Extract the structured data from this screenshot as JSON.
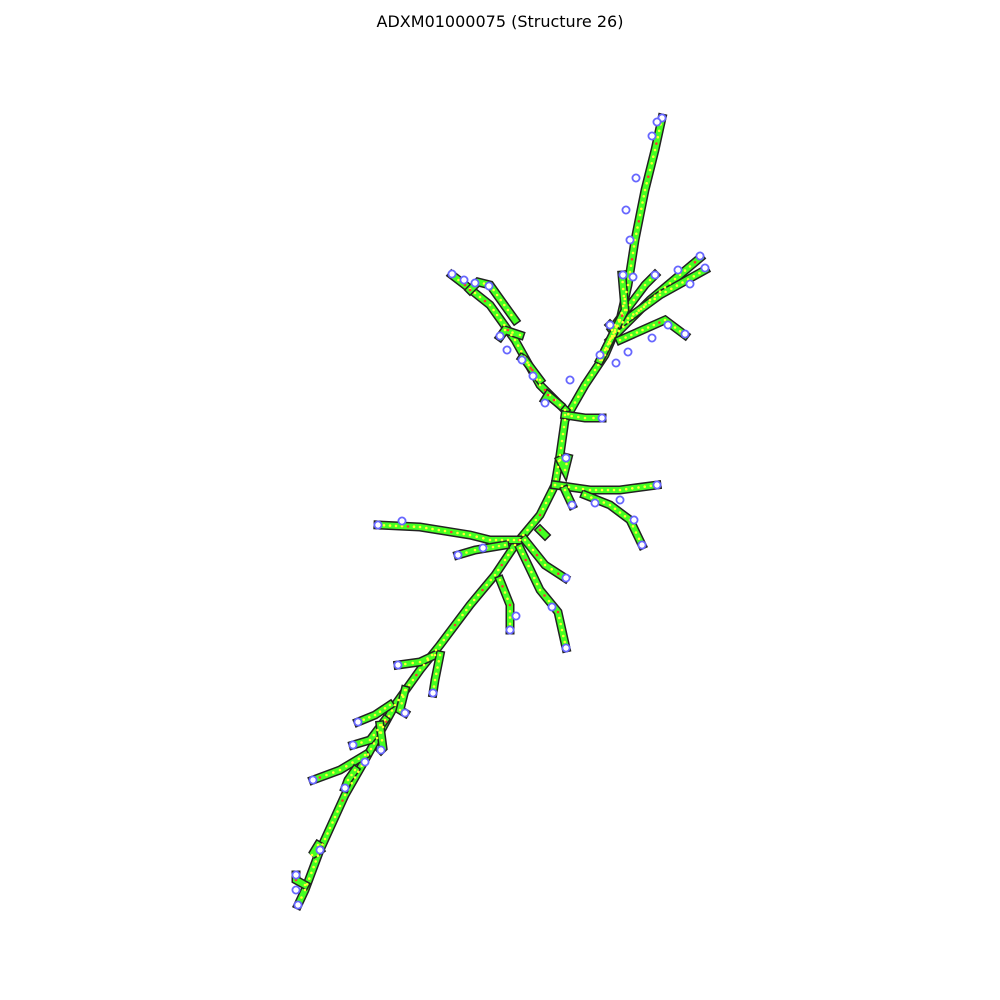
{
  "figure": {
    "title": "ADXM01000075 (Structure 26)"
  },
  "colors": {
    "background": "#ffffff",
    "stem_outline": "#222222",
    "stem_fill": "#44ff22",
    "base_dot": "#ffff33",
    "pair_dot": "#ff3333",
    "loop_outline": "#6666ff",
    "accent_cyan": "#22ddcc"
  },
  "legend": {
    "shown": false
  }
}
